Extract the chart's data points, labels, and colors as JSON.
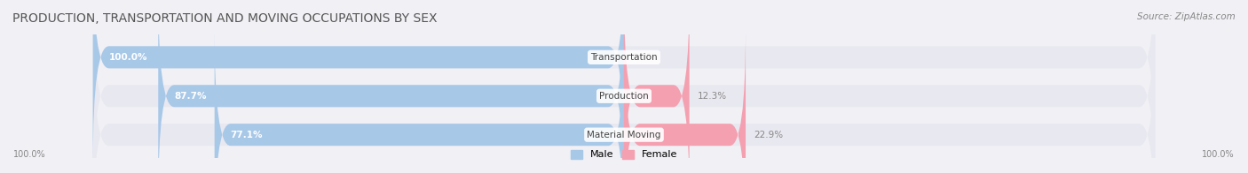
{
  "title": "PRODUCTION, TRANSPORTATION AND MOVING OCCUPATIONS BY SEX",
  "source": "Source: ZipAtlas.com",
  "categories": [
    "Transportation",
    "Production",
    "Material Moving"
  ],
  "male_pct": [
    100.0,
    87.7,
    77.1
  ],
  "female_pct": [
    0.0,
    12.3,
    22.9
  ],
  "male_color": "#a8c8e8",
  "female_color": "#f4a0b0",
  "bg_color": "#f0f0f5",
  "bar_bg_color": "#e8e8f0",
  "label_color_male": "#5090c0",
  "label_color_female": "#c06070",
  "title_fontsize": 10,
  "source_fontsize": 7.5,
  "bar_height": 0.55,
  "figsize": [
    14.06,
    1.96
  ],
  "dpi": 100
}
